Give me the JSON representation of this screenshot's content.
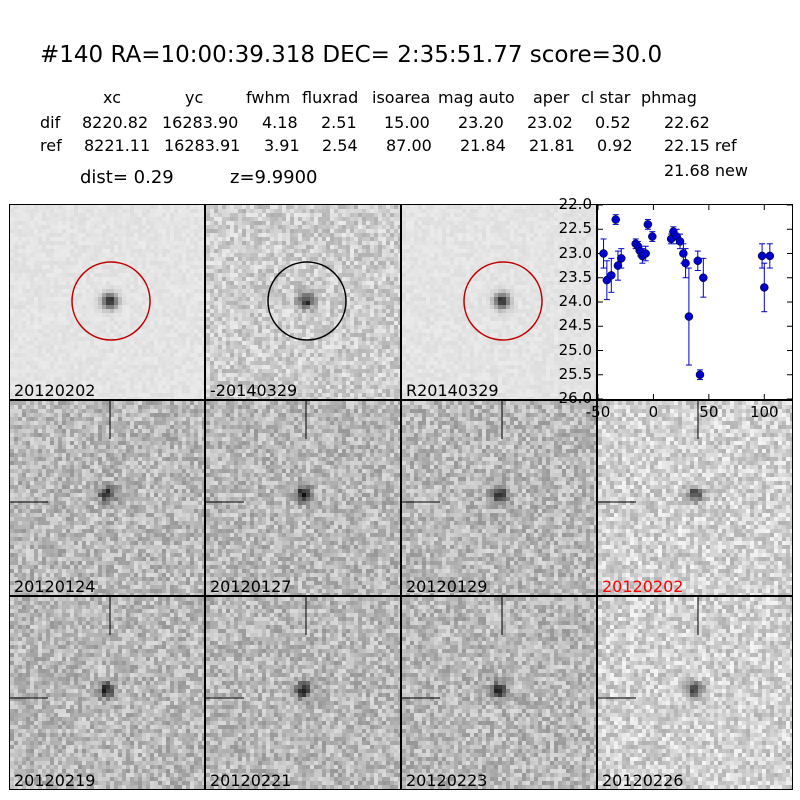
{
  "title": "#140   RA=10:00:39.318 DEC= 2:35:51.77       score=30.0",
  "table": {
    "headers": [
      "xc",
      "yc",
      "fwhm",
      "fluxrad",
      "isoarea",
      "mag auto",
      "aper",
      "cl star",
      "phmag"
    ],
    "rows": [
      {
        "label": "dif",
        "values": [
          "8220.82",
          "16283.90",
          "4.18",
          "2.51",
          "15.00",
          "23.20",
          "23.02",
          "0.52",
          "22.62"
        ]
      },
      {
        "label": "ref",
        "values": [
          "8221.11",
          "16283.91",
          "3.91",
          "2.54",
          "87.00",
          "21.84",
          "21.81",
          "0.92",
          "22.15 ref"
        ]
      }
    ],
    "extra": "21.68 new"
  },
  "dist_text": "dist=  0.29",
  "z_text": "z=9.9900",
  "top_panels": [
    {
      "label": "20120202",
      "circle": "#c00000"
    },
    {
      "label": "-20140329",
      "circle": "#000000"
    },
    {
      "label": "R20140329",
      "circle": "#c00000"
    }
  ],
  "grid_panels": [
    {
      "label": "20120124",
      "color": "#000000"
    },
    {
      "label": "20120127",
      "color": "#000000"
    },
    {
      "label": "20120129",
      "color": "#000000"
    },
    {
      "label": "20120202",
      "color": "#ff0000"
    },
    {
      "label": "20120219",
      "color": "#000000"
    },
    {
      "label": "20120221",
      "color": "#000000"
    },
    {
      "label": "20120223",
      "color": "#000000"
    },
    {
      "label": "20120226",
      "color": "#000000"
    }
  ],
  "chart_data": {
    "type": "scatter",
    "title": "",
    "xlabel": "",
    "ylabel": "",
    "xlim": [
      -50,
      125
    ],
    "ylim": [
      26.0,
      22.0
    ],
    "y_inverted": true,
    "xticks": [
      "-50",
      "0",
      "50",
      "100"
    ],
    "yticks": [
      "22.0",
      "22.5",
      "23.0",
      "23.5",
      "24.0",
      "24.5",
      "25.0",
      "25.5",
      "26.0"
    ],
    "grid": false,
    "marker_color": "#0000cc",
    "points": [
      {
        "x": -45,
        "y": 23.0,
        "err": 0.3
      },
      {
        "x": -42,
        "y": 23.55,
        "err": 0.4
      },
      {
        "x": -38,
        "y": 23.45,
        "err": 0.35
      },
      {
        "x": -34,
        "y": 22.3,
        "err": 0.1
      },
      {
        "x": -32,
        "y": 23.25,
        "err": 0.3
      },
      {
        "x": -29,
        "y": 23.1,
        "err": 0.2
      },
      {
        "x": -16,
        "y": 22.8,
        "err": 0.1
      },
      {
        "x": -14,
        "y": 22.85,
        "err": 0.1
      },
      {
        "x": -12,
        "y": 22.95,
        "err": 0.1
      },
      {
        "x": -10,
        "y": 23.05,
        "err": 0.15
      },
      {
        "x": -7,
        "y": 23.0,
        "err": 0.15
      },
      {
        "x": -5,
        "y": 22.4,
        "err": 0.1
      },
      {
        "x": -1,
        "y": 22.65,
        "err": 0.1
      },
      {
        "x": 16,
        "y": 22.7,
        "err": 0.1
      },
      {
        "x": 18,
        "y": 22.55,
        "err": 0.1
      },
      {
        "x": 21,
        "y": 22.65,
        "err": 0.15
      },
      {
        "x": 24,
        "y": 22.75,
        "err": 0.15
      },
      {
        "x": 27,
        "y": 23.0,
        "err": 0.2
      },
      {
        "x": 29,
        "y": 23.2,
        "err": 0.3
      },
      {
        "x": 32,
        "y": 24.3,
        "err": 1.0
      },
      {
        "x": 40,
        "y": 23.15,
        "err": 0.2
      },
      {
        "x": 42,
        "y": 25.5,
        "err": 0.1
      },
      {
        "x": 45,
        "y": 23.5,
        "err": 0.4
      },
      {
        "x": 98,
        "y": 23.05,
        "err": 0.25
      },
      {
        "x": 100,
        "y": 23.7,
        "err": 0.5
      },
      {
        "x": 105,
        "y": 23.05,
        "err": 0.25
      }
    ]
  }
}
